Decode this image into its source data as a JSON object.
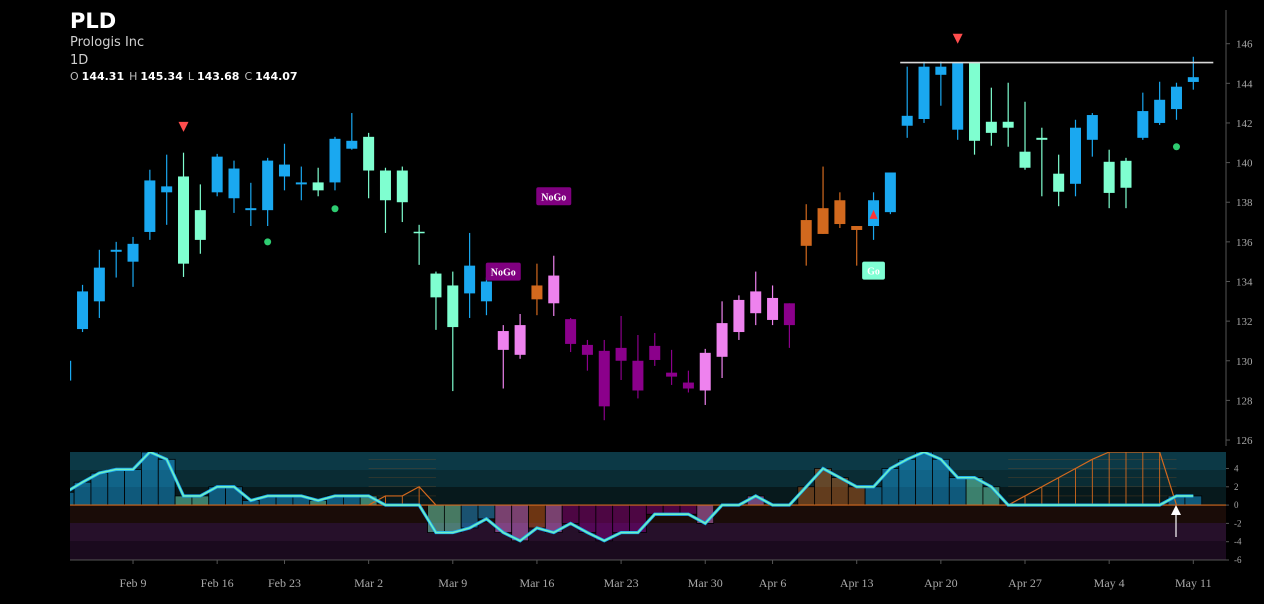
{
  "chart_data": [
    {
      "type": "candlestick",
      "title": "PLD",
      "subtitle": "Prologis Inc",
      "interval": "1D",
      "ohlc_labels": [
        "O",
        "H",
        "L",
        "C"
      ],
      "categories": [
        null,
        null,
        null,
        null,
        "Feb 9",
        null,
        null,
        null,
        null,
        "Feb 16",
        null,
        null,
        null,
        "Feb 23",
        null,
        null,
        null,
        null,
        "Mar 2",
        null,
        null,
        null,
        null,
        "Mar 9",
        null,
        null,
        null,
        null,
        "Mar 16",
        null,
        null,
        null,
        null,
        "Mar 23",
        null,
        null,
        null,
        null,
        "Mar 30",
        null,
        null,
        null,
        "Apr 6",
        null,
        null,
        null,
        null,
        "Apr 13",
        null,
        null,
        null,
        null,
        "Apr 20",
        null,
        null,
        null,
        null,
        "Apr 27",
        null,
        null,
        null,
        null,
        "May 4",
        null,
        null,
        null,
        null,
        "May 11"
      ],
      "open": [
        130.0,
        131.6,
        133.0,
        135.5,
        135.0,
        136.5,
        138.8,
        139.3,
        136.1,
        138.5,
        139.7,
        137.6,
        137.6,
        139.9,
        138.9,
        139.0,
        139.0,
        141.1,
        141.3,
        139.6,
        139.6,
        136.5,
        134.4,
        133.8,
        133.4,
        134.0,
        131.5,
        130.3,
        133.1,
        134.3,
        132.1,
        130.8,
        130.5,
        130.65,
        130.0,
        130.75,
        129.4,
        128.9,
        128.5,
        130.2,
        131.45,
        132.4,
        133.17,
        132.9,
        135.8,
        136.4,
        136.9,
        136.8,
        136.8,
        137.5,
        141.86,
        142.2,
        144.43,
        145.04,
        145.04,
        142.06,
        141.76,
        140.55,
        141.25,
        139.44,
        138.93,
        141.15,
        140.04,
        138.73,
        141.25,
        142.0,
        142.7,
        144.31
      ],
      "high": [
        130.44,
        133.83,
        135.6,
        136.0,
        136.25,
        139.64,
        140.4,
        140.5,
        138.9,
        140.44,
        140.1,
        138.98,
        140.24,
        140.95,
        139.8,
        139.74,
        141.3,
        142.5,
        141.5,
        139.74,
        139.8,
        136.86,
        134.5,
        134.5,
        136.45,
        134.2,
        131.8,
        132.36,
        134.9,
        135.3,
        132.16,
        131.05,
        131.05,
        132.26,
        131.3,
        131.4,
        130.55,
        129.5,
        130.6,
        133.0,
        133.3,
        134.5,
        133.8,
        132.9,
        137.9,
        139.8,
        138.5,
        136.8,
        138.5,
        139.5,
        144.84,
        145.09,
        145.1,
        145.04,
        145.04,
        143.78,
        144.03,
        143.07,
        141.76,
        140.4,
        142.16,
        142.5,
        140.65,
        140.24,
        143.53,
        144.08,
        144.03,
        145.34
      ],
      "low": [
        128.12,
        131.45,
        132.16,
        134.2,
        133.73,
        136.1,
        136.86,
        134.23,
        135.4,
        138.3,
        137.46,
        136.8,
        136.8,
        138.6,
        138.1,
        138.3,
        138.6,
        140.65,
        138.2,
        136.45,
        137.0,
        134.84,
        131.56,
        128.47,
        132.16,
        132.3,
        128.6,
        130.1,
        132.3,
        132.26,
        130.44,
        129.5,
        127.0,
        129.03,
        128.1,
        129.74,
        128.78,
        128.4,
        127.77,
        129.13,
        131.05,
        131.8,
        131.8,
        130.65,
        134.8,
        136.4,
        136.7,
        134.8,
        136.1,
        137.4,
        141.25,
        142.0,
        142.87,
        141.15,
        140.4,
        140.85,
        140.8,
        139.64,
        138.3,
        137.8,
        138.3,
        140.3,
        137.7,
        137.7,
        141.15,
        141.9,
        142.16,
        143.68
      ],
      "close": [
        129.0,
        133.5,
        134.7,
        135.6,
        135.9,
        139.1,
        138.5,
        134.9,
        137.6,
        140.3,
        138.2,
        137.7,
        140.1,
        139.3,
        139.0,
        138.6,
        141.2,
        140.7,
        139.6,
        138.1,
        138.0,
        136.51,
        133.2,
        131.7,
        134.8,
        133.0,
        130.55,
        131.8,
        133.8,
        132.9,
        130.85,
        130.3,
        127.7,
        130.0,
        128.5,
        130.04,
        129.2,
        128.6,
        130.4,
        131.9,
        133.07,
        133.5,
        132.06,
        131.8,
        137.1,
        137.7,
        138.1,
        136.6,
        138.1,
        139.5,
        142.36,
        144.84,
        144.84,
        141.66,
        141.1,
        141.5,
        142.06,
        139.74,
        141.15,
        138.53,
        141.76,
        142.4,
        138.47,
        140.09,
        142.6,
        143.17,
        143.83,
        144.07
      ],
      "colors": [
        "#1aa8f0",
        "#1aa8f0",
        "#1aa8f0",
        "#1aa8f0",
        "#1aa8f0",
        "#1aa8f0",
        "#1aa8f0",
        "#7fffd0",
        "#7fffd0",
        "#1aa8f0",
        "#1aa8f0",
        "#1aa8f0",
        "#1aa8f0",
        "#1aa8f0",
        "#1aa8f0",
        "#7fffd0",
        "#1aa8f0",
        "#1aa8f0",
        "#7fffd0",
        "#7fffd0",
        "#7fffd0",
        "#7fffd0",
        "#7fffd0",
        "#7fffd0",
        "#1aa8f0",
        "#1aa8f0",
        "#ee82ee",
        "#ee82ee",
        "#d2691e",
        "#ee82ee",
        "#8b008b",
        "#8b008b",
        "#8b008b",
        "#8b008b",
        "#8b008b",
        "#8b008b",
        "#8b008b",
        "#8b008b",
        "#ee82ee",
        "#ee82ee",
        "#ee82ee",
        "#ee82ee",
        "#ee82ee",
        "#8b008b",
        "#d2691e",
        "#d2691e",
        "#d2691e",
        "#d2691e",
        "#1aa8f0",
        "#1aa8f0",
        "#1aa8f0",
        "#1aa8f0",
        "#1aa8f0",
        "#1aa8f0",
        "#7fffd0",
        "#7fffd0",
        "#7fffd0",
        "#7fffd0",
        "#7fffd0",
        "#7fffd0",
        "#1aa8f0",
        "#1aa8f0",
        "#7fffd0",
        "#7fffd0",
        "#1aa8f0",
        "#1aa8f0",
        "#1aa8f0",
        "#1aa8f0"
      ],
      "ylim": [
        125.8,
        147.7
      ],
      "yticks": [
        126,
        128,
        130,
        132,
        134,
        136,
        138,
        140,
        142,
        144,
        146
      ],
      "signals": [
        {
          "shape": "triangle-down",
          "color": "#ff4d4d",
          "points": [
            {
              "at": 7,
              "value": 141.8
            },
            {
              "at": 53,
              "value": 146.25
            }
          ]
        },
        {
          "shape": "triangle-up",
          "color": "#ff3333",
          "points": [
            {
              "at": 48,
              "value": 137.36
            }
          ]
        },
        {
          "shape": "dot",
          "color": "#2ecc71",
          "points": [
            {
              "at": 12,
              "value": 136.0
            },
            {
              "at": 16,
              "value": 137.67
            },
            {
              "at": 66,
              "value": 140.8
            }
          ]
        }
      ],
      "annotations": [
        {
          "text": "NoGo",
          "at": 29,
          "value": 138.3,
          "color": "#800080",
          "text_color": "#ffffff"
        },
        {
          "text": "NoGo",
          "at": 26,
          "value": 134.5,
          "color": "#800080",
          "text_color": "#ffffff"
        },
        {
          "text": "Go",
          "at": 48,
          "value": 134.55,
          "color": "#7fffd4",
          "text_color": "#ffffff"
        }
      ],
      "resistance": {
        "from": 50,
        "to": 67,
        "value": 145.05,
        "color": "#d8d8d8"
      }
    },
    {
      "type": "area",
      "ylim": [
        -6,
        5.8
      ],
      "yticks": [
        4,
        2,
        0,
        -2,
        -4,
        -6
      ],
      "values": [
        1.4,
        2.5,
        3.5,
        3.9,
        3.9,
        5.8,
        5.0,
        1,
        1,
        2,
        2,
        0.5,
        1,
        1,
        1,
        0.5,
        1,
        1,
        1,
        0,
        0,
        0,
        -3,
        -3,
        -2.5,
        -1.5,
        -3,
        -3.9,
        -2.5,
        -3,
        -2,
        -3,
        -3.9,
        -3,
        -3,
        -1,
        -1,
        -1,
        -2,
        0,
        0,
        1,
        0,
        0,
        2,
        4,
        3,
        2,
        2,
        4,
        5,
        5.8,
        5,
        3,
        3,
        2,
        0,
        0,
        0,
        0,
        0,
        0,
        0,
        0,
        0,
        0,
        1,
        1
      ],
      "color": "#6ff0c4",
      "nogo": {
        "color": "#d2691e",
        "values": [
          null,
          null,
          null,
          null,
          null,
          null,
          null,
          null,
          null,
          null,
          null,
          null,
          null,
          null,
          null,
          null,
          null,
          null,
          0,
          1,
          1,
          2,
          0,
          null,
          null,
          null,
          null,
          null,
          null,
          null,
          null,
          null,
          null,
          null,
          null,
          null,
          null,
          null,
          null,
          null,
          null,
          null,
          null,
          null,
          null,
          null,
          null,
          null,
          null,
          null,
          null,
          null,
          null,
          null,
          null,
          null,
          0,
          1,
          2,
          3,
          4,
          5,
          5.8,
          5.8,
          5.8,
          5.8,
          0,
          null
        ]
      }
    }
  ]
}
